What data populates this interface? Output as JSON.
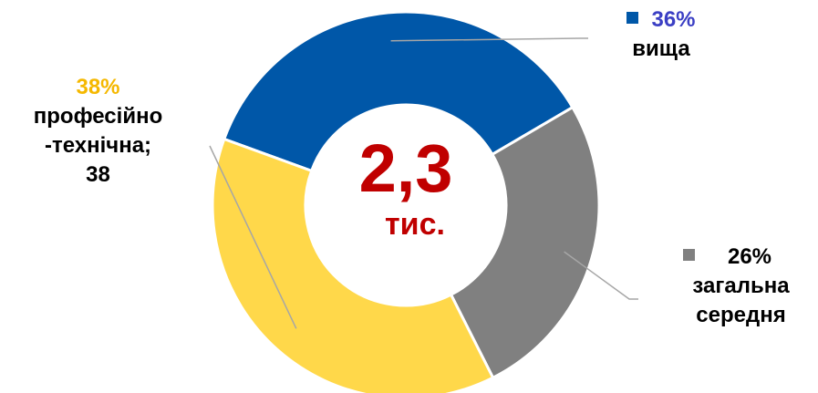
{
  "chart_data": {
    "type": "pie",
    "center_value": "2,3",
    "center_unit": "тис.",
    "slices": [
      {
        "category": "вища",
        "value": 36,
        "percent_label": "36%",
        "color": "#0057a8",
        "pct_color": "#3b3fc4",
        "marker": true
      },
      {
        "category": "загальна середня",
        "line1": "загальна",
        "line2": "середня",
        "value": 26,
        "percent_label": "26%",
        "color": "#808080",
        "pct_color": "#000000",
        "marker": true
      },
      {
        "category": "професійно-технічна",
        "line1": "професійно",
        "line2": "-технічна;",
        "line3": "38",
        "value": 38,
        "percent_label": "38%",
        "color": "#ffd84a",
        "pct_color": "#f5b800",
        "marker": false
      }
    ]
  }
}
